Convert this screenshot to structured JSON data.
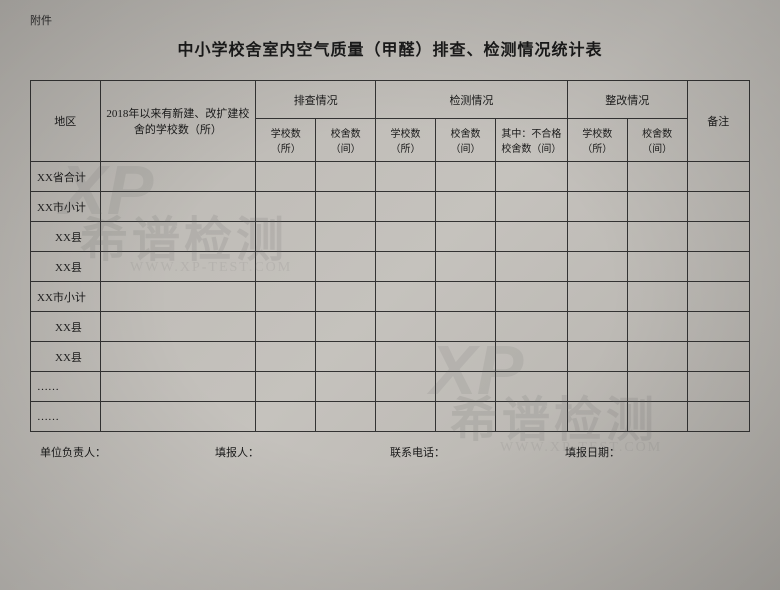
{
  "attachment_label": "附件",
  "title": "中小学校舍室内空气质量（甲醛）排查、检测情况统计表",
  "headers": {
    "region": "地区",
    "schools_2018": "2018年以来有新建、改扩建校舍的学校数（所）",
    "inspection": "排查情况",
    "detection": "检测情况",
    "rectification": "整改情况",
    "remarks": "备注",
    "school_count": "学校数（所）",
    "building_count": "校舍数（间）",
    "unqualified": "其中：不合格校舍数（间）"
  },
  "rows": [
    "XX省合计",
    "XX市小计",
    "XX县",
    "XX县",
    "XX市小计",
    "XX县",
    "XX县",
    "……",
    "……"
  ],
  "row_indent": [
    false,
    false,
    true,
    true,
    false,
    true,
    true,
    false,
    false
  ],
  "footer": {
    "unit_leader": "单位负责人：",
    "filler": "填报人：",
    "contact": "联系电话：",
    "date": "填报日期："
  },
  "watermark": {
    "text": "希谱检测",
    "url": "WWW.XP-TEST.COM",
    "logo": "XP"
  },
  "colors": {
    "border": "#333333",
    "text": "#1a1a1a",
    "background": "#bcb9b4"
  }
}
